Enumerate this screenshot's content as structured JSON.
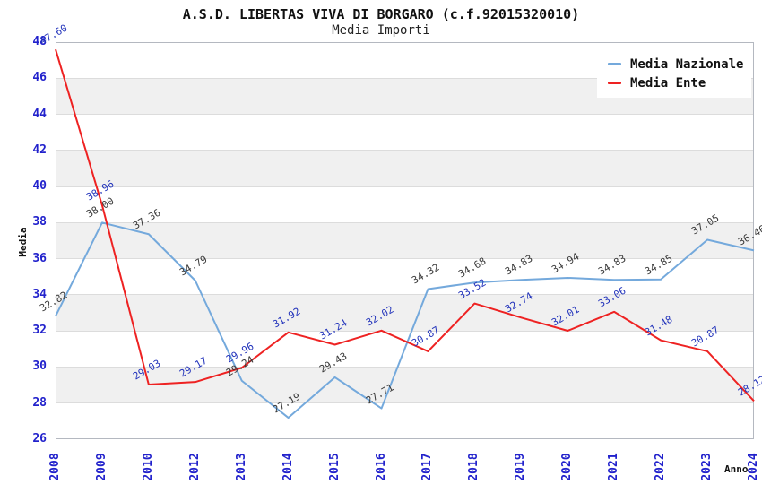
{
  "chart_data": {
    "type": "line",
    "title": "A.S.D. LIBERTAS VIVA DI BORGARO (c.f.92015320010)",
    "subtitle": "Media Importi",
    "xlabel": "Anno",
    "ylabel": "Media",
    "categories": [
      "2008",
      "2009",
      "2010",
      "2012",
      "2013",
      "2014",
      "2015",
      "2016",
      "2017",
      "2018",
      "2019",
      "2020",
      "2021",
      "2022",
      "2023",
      "2024"
    ],
    "ylim": [
      26,
      48
    ],
    "ytick_step": 2,
    "yticks": [
      26,
      28,
      30,
      32,
      34,
      36,
      38,
      40,
      42,
      44,
      46,
      48
    ],
    "grid": "alternating horizontal bands, horizontal gridlines only",
    "legend_position": "top-right",
    "series": [
      {
        "name": "Media Nazionale",
        "color": "#74a9dc",
        "label_color": "#3a3a3a",
        "values": [
          32.82,
          38.0,
          37.36,
          34.79,
          29.24,
          27.19,
          29.43,
          27.71,
          34.32,
          34.68,
          34.83,
          34.94,
          34.83,
          34.85,
          37.05,
          36.46
        ]
      },
      {
        "name": "Media Ente",
        "color": "#ee2222",
        "label_color": "#2233bb",
        "values": [
          47.6,
          38.96,
          29.03,
          29.17,
          29.96,
          31.92,
          31.24,
          32.02,
          30.87,
          33.52,
          32.74,
          32.01,
          33.06,
          31.48,
          30.87,
          28.12
        ]
      }
    ],
    "colors": {
      "background": "#ffffff",
      "band": "#f0f0f0",
      "gridline": "#dcdcdc",
      "frame": "#b4b8c0",
      "tick_label": "#2222cc",
      "axis_title": "#111111"
    }
  }
}
